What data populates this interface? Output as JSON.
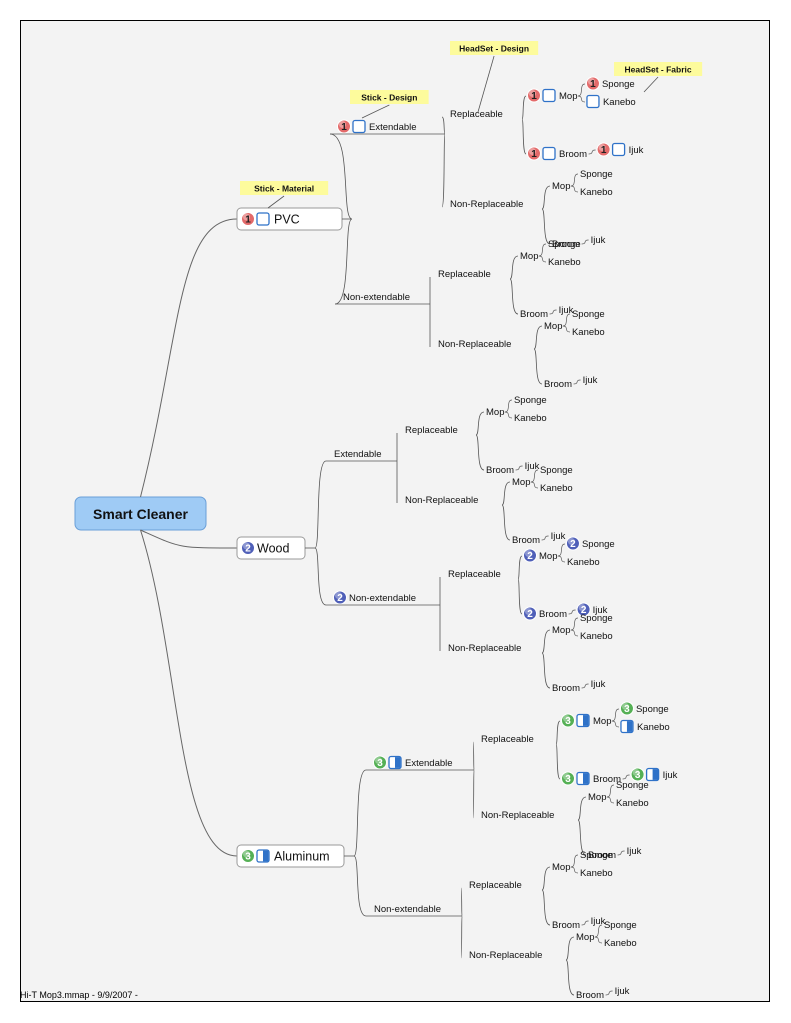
{
  "footer": "Hi-T Mop3.mmap - 9/9/2007 -",
  "colors": {
    "background": "#f3f3f3",
    "root_fill": "#9fcbf5",
    "root_stroke": "#6a9fd8",
    "callout_fill": "#fdfb9c",
    "priority_1": "#e36a6a",
    "priority_2": "#4f5fb8",
    "priority_3": "#55b055",
    "check_blue": "#2f72c8",
    "line": "#555555"
  },
  "icons": {
    "priority": "priority-number-icon",
    "task_empty": "task-not-started-icon",
    "task_half": "task-half-complete-icon"
  },
  "map": {
    "root": "Smart Cleaner",
    "callouts": [
      "Stick - Material",
      "Stick - Design",
      "HeadSet - Design",
      "HeadSet - Fabric"
    ],
    "branches": [
      {
        "label": "PVC",
        "priority": "1",
        "task": "empty",
        "callout": "Stick - Material",
        "children": [
          {
            "label": "Extendable",
            "priority": "1",
            "task": "empty",
            "callout": "Stick - Design",
            "children": [
              {
                "label": "Replaceable",
                "callout": "HeadSet - Design",
                "children": [
                  {
                    "label": "Mop",
                    "priority": "1",
                    "task": "empty",
                    "callout": "HeadSet - Fabric",
                    "children": [
                      {
                        "label": "Sponge",
                        "priority": "1"
                      },
                      {
                        "label": "Kanebo",
                        "task": "empty"
                      }
                    ]
                  },
                  {
                    "label": "Broom",
                    "priority": "1",
                    "task": "empty",
                    "children": [
                      {
                        "label": "Ijuk",
                        "priority": "1",
                        "task": "empty"
                      }
                    ]
                  }
                ]
              },
              {
                "label": "Non-Replaceable",
                "children": [
                  {
                    "label": "Mop",
                    "children": [
                      {
                        "label": "Sponge"
                      },
                      {
                        "label": "Kanebo"
                      }
                    ]
                  },
                  {
                    "label": "Broom",
                    "children": [
                      {
                        "label": "Ijuk"
                      }
                    ]
                  }
                ]
              }
            ]
          },
          {
            "label": "Non-extendable",
            "children": [
              {
                "label": "Replaceable",
                "children": [
                  {
                    "label": "Mop",
                    "children": [
                      {
                        "label": "Sponge"
                      },
                      {
                        "label": "Kanebo"
                      }
                    ]
                  },
                  {
                    "label": "Broom",
                    "children": [
                      {
                        "label": "Ijuk"
                      }
                    ]
                  }
                ]
              },
              {
                "label": "Non-Replaceable",
                "children": [
                  {
                    "label": "Mop",
                    "children": [
                      {
                        "label": "Sponge"
                      },
                      {
                        "label": "Kanebo"
                      }
                    ]
                  },
                  {
                    "label": "Broom",
                    "children": [
                      {
                        "label": "Ijuk"
                      }
                    ]
                  }
                ]
              }
            ]
          }
        ]
      },
      {
        "label": "Wood",
        "priority": "2",
        "children": [
          {
            "label": "Extendable",
            "children": [
              {
                "label": "Replaceable",
                "children": [
                  {
                    "label": "Mop",
                    "children": [
                      {
                        "label": "Sponge"
                      },
                      {
                        "label": "Kanebo"
                      }
                    ]
                  },
                  {
                    "label": "Broom",
                    "children": [
                      {
                        "label": "Ijuk"
                      }
                    ]
                  }
                ]
              },
              {
                "label": "Non-Replaceable",
                "children": [
                  {
                    "label": "Mop",
                    "children": [
                      {
                        "label": "Sponge"
                      },
                      {
                        "label": "Kanebo"
                      }
                    ]
                  },
                  {
                    "label": "Broom",
                    "children": [
                      {
                        "label": "Ijuk"
                      }
                    ]
                  }
                ]
              }
            ]
          },
          {
            "label": "Non-extendable",
            "priority": "2",
            "children": [
              {
                "label": "Replaceable",
                "children": [
                  {
                    "label": "Mop",
                    "priority": "2",
                    "children": [
                      {
                        "label": "Sponge",
                        "priority": "2"
                      },
                      {
                        "label": "Kanebo"
                      }
                    ]
                  },
                  {
                    "label": "Broom",
                    "priority": "2",
                    "children": [
                      {
                        "label": "Ijuk",
                        "priority": "2"
                      }
                    ]
                  }
                ]
              },
              {
                "label": "Non-Replaceable",
                "children": [
                  {
                    "label": "Mop",
                    "children": [
                      {
                        "label": "Sponge"
                      },
                      {
                        "label": "Kanebo"
                      }
                    ]
                  },
                  {
                    "label": "Broom",
                    "children": [
                      {
                        "label": "Ijuk"
                      }
                    ]
                  }
                ]
              }
            ]
          }
        ]
      },
      {
        "label": "Aluminum",
        "priority": "3",
        "task": "half",
        "children": [
          {
            "label": "Extendable",
            "priority": "3",
            "task": "half",
            "children": [
              {
                "label": "Replaceable",
                "children": [
                  {
                    "label": "Mop",
                    "priority": "3",
                    "task": "half",
                    "children": [
                      {
                        "label": "Sponge",
                        "priority": "3"
                      },
                      {
                        "label": "Kanebo",
                        "task": "half"
                      }
                    ]
                  },
                  {
                    "label": "Broom",
                    "priority": "3",
                    "task": "half",
                    "children": [
                      {
                        "label": "Ijuk",
                        "priority": "3",
                        "task": "half"
                      }
                    ]
                  }
                ]
              },
              {
                "label": "Non-Replaceable",
                "children": [
                  {
                    "label": "Mop",
                    "children": [
                      {
                        "label": "Sponge"
                      },
                      {
                        "label": "Kanebo"
                      }
                    ]
                  },
                  {
                    "label": "Broom",
                    "children": [
                      {
                        "label": "Ijuk"
                      }
                    ]
                  }
                ]
              }
            ]
          },
          {
            "label": "Non-extendable",
            "children": [
              {
                "label": "Replaceable",
                "children": [
                  {
                    "label": "Mop",
                    "children": [
                      {
                        "label": "Sponge"
                      },
                      {
                        "label": "Kanebo"
                      }
                    ]
                  },
                  {
                    "label": "Broom",
                    "children": [
                      {
                        "label": "Ijuk"
                      }
                    ]
                  }
                ]
              },
              {
                "label": "Non-Replaceable",
                "children": [
                  {
                    "label": "Mop",
                    "children": [
                      {
                        "label": "Sponge"
                      },
                      {
                        "label": "Kanebo"
                      }
                    ]
                  },
                  {
                    "label": "Broom",
                    "children": [
                      {
                        "label": "Ijuk"
                      }
                    ]
                  }
                ]
              }
            ]
          }
        ]
      }
    ]
  }
}
